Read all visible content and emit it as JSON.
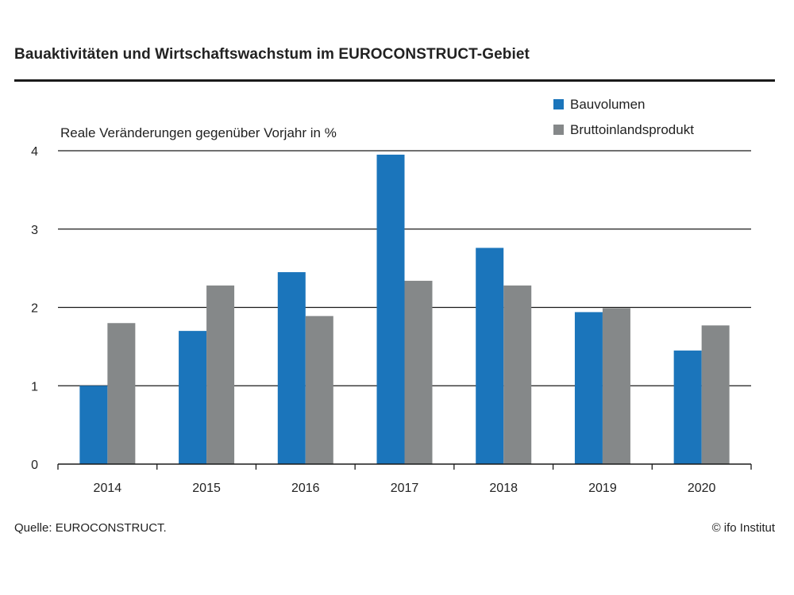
{
  "chart_data": {
    "type": "bar",
    "title": "Bauaktivitäten und Wirtschaftswachstum im EUROCONSTRUCT-Gebiet",
    "ylabel": "Reale Veränderungen gegenüber Vorjahr in %",
    "categories": [
      "2014",
      "2015",
      "2016",
      "2017",
      "2018",
      "2019",
      "2020"
    ],
    "series": [
      {
        "name": "Bauvolumen",
        "color": "#1b75bb",
        "values": [
          1.0,
          1.7,
          2.45,
          3.95,
          2.76,
          1.94,
          1.45
        ]
      },
      {
        "name": "Bruttoinlandsprodukt",
        "color": "#858889",
        "values": [
          1.8,
          2.28,
          1.89,
          2.34,
          2.28,
          1.99,
          1.77
        ]
      }
    ],
    "ylim": [
      0,
      4
    ],
    "yticks": [
      "0",
      "1",
      "2",
      "3",
      "4"
    ],
    "grid": true,
    "legend": "top-right",
    "source": "Quelle: EUROCONSTRUCT.",
    "credit": "© ifo Institut"
  }
}
